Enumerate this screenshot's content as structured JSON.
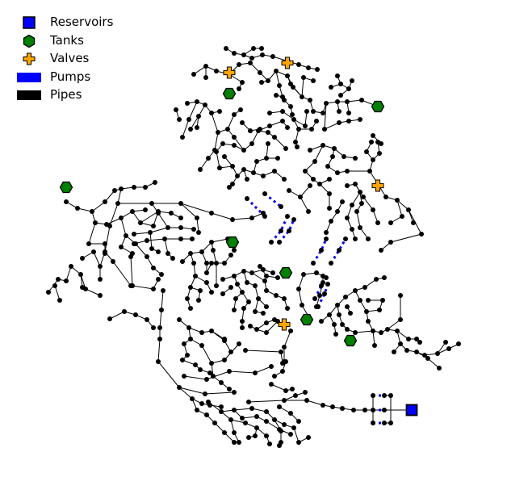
{
  "legend": {
    "reservoirs": "Reservoirs",
    "tanks": "Tanks",
    "valves": "Valves",
    "pumps": "Pumps",
    "pipes": "Pipes"
  },
  "colors": {
    "reservoir": "#0000ff",
    "tank": "#008000",
    "valve": "#ffa500",
    "pump": "#0000ff",
    "pipe": "#000000",
    "node": "#000000"
  },
  "icons": {
    "reservoir": "square",
    "tank": "hexagon",
    "valve": "plus",
    "pump": "dotted-line",
    "pipe": "solid-line"
  }
}
